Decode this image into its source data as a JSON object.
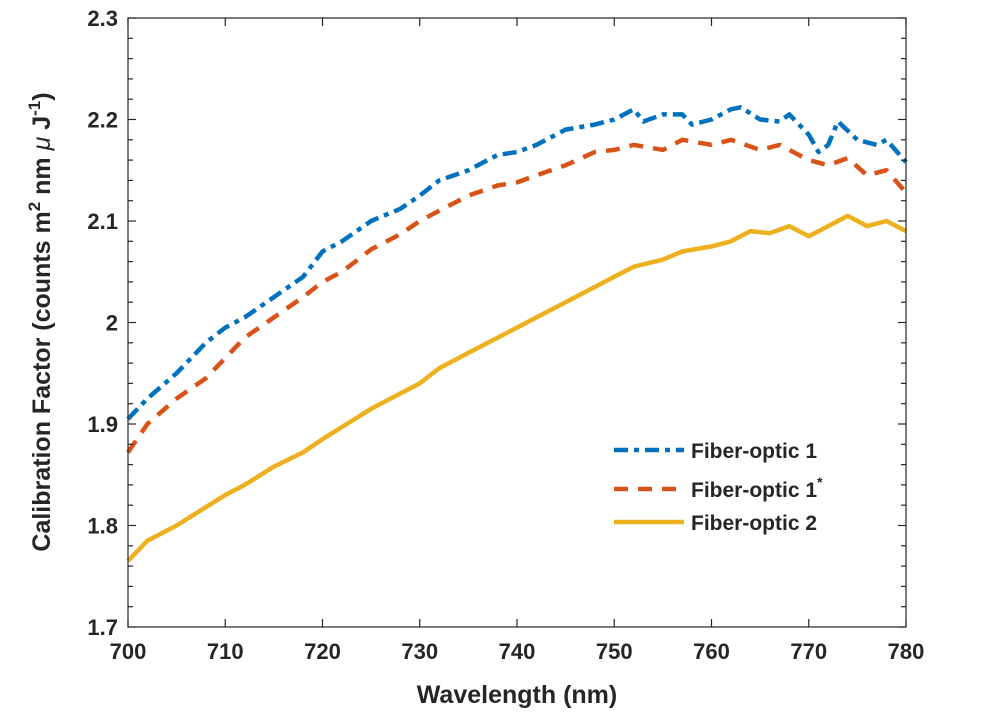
{
  "chart_data": {
    "type": "line",
    "title": "",
    "xlabel": "Wavelength (nm)",
    "ylabel": "Calibration Factor (counts m",
    "ylabel_parts": {
      "pre": "Calibration Factor (counts m",
      "sup1": "2",
      "mid": " nm ",
      "mu": "μ",
      "j": " J",
      "sup2": "-1",
      "post": ")"
    },
    "xlim": [
      700,
      780
    ],
    "ylim": [
      1.7,
      2.3
    ],
    "xticks": [
      "700",
      "710",
      "720",
      "730",
      "740",
      "750",
      "760",
      "770",
      "780"
    ],
    "yticks": [
      "1.7",
      "1.8",
      "1.9",
      "2",
      "2.1",
      "2.2",
      "2.3"
    ],
    "grid": false,
    "legend_position": "lower-right",
    "series": [
      {
        "name": "Fiber-optic 1",
        "name_sup": "",
        "color": "#0072BD",
        "style": "dash-dot",
        "x": [
          700,
          702,
          705,
          708,
          710,
          712,
          715,
          718,
          720,
          722,
          725,
          728,
          730,
          732,
          735,
          738,
          740,
          742,
          745,
          748,
          750,
          752,
          753,
          755,
          757,
          758,
          760,
          762,
          763,
          765,
          767,
          768,
          770,
          771,
          772,
          773,
          775,
          777,
          778,
          780
        ],
        "y": [
          1.905,
          1.925,
          1.95,
          1.98,
          1.995,
          2.005,
          2.025,
          2.045,
          2.07,
          2.08,
          2.1,
          2.112,
          2.125,
          2.14,
          2.15,
          2.165,
          2.168,
          2.175,
          2.19,
          2.195,
          2.2,
          2.21,
          2.198,
          2.205,
          2.205,
          2.195,
          2.2,
          2.21,
          2.212,
          2.2,
          2.198,
          2.205,
          2.185,
          2.168,
          2.175,
          2.198,
          2.18,
          2.175,
          2.18,
          2.158
        ]
      },
      {
        "name": "Fiber-optic 1",
        "name_sup": "*",
        "color": "#D95319",
        "style": "dashed",
        "x": [
          700,
          702,
          705,
          708,
          710,
          712,
          715,
          718,
          720,
          722,
          725,
          728,
          730,
          732,
          735,
          738,
          740,
          742,
          745,
          748,
          750,
          752,
          755,
          757,
          760,
          762,
          765,
          767,
          770,
          772,
          774,
          776,
          778,
          780
        ],
        "y": [
          1.872,
          1.9,
          1.925,
          1.945,
          1.965,
          1.985,
          2.005,
          2.025,
          2.04,
          2.05,
          2.072,
          2.087,
          2.1,
          2.11,
          2.125,
          2.135,
          2.138,
          2.145,
          2.155,
          2.168,
          2.17,
          2.175,
          2.17,
          2.18,
          2.175,
          2.18,
          2.17,
          2.175,
          2.16,
          2.155,
          2.162,
          2.145,
          2.15,
          2.128
        ]
      },
      {
        "name": "Fiber-optic 2",
        "name_sup": "",
        "color": "#EDB120",
        "style": "solid",
        "x": [
          700,
          702,
          705,
          708,
          710,
          712,
          715,
          718,
          720,
          722,
          725,
          728,
          730,
          732,
          735,
          738,
          740,
          742,
          745,
          748,
          750,
          752,
          755,
          757,
          760,
          762,
          764,
          766,
          768,
          770,
          772,
          774,
          776,
          778,
          780
        ],
        "y": [
          1.765,
          1.785,
          1.8,
          1.818,
          1.83,
          1.84,
          1.858,
          1.872,
          1.885,
          1.897,
          1.915,
          1.93,
          1.94,
          1.955,
          1.97,
          1.985,
          1.995,
          2.005,
          2.02,
          2.035,
          2.045,
          2.055,
          2.062,
          2.07,
          2.075,
          2.08,
          2.09,
          2.088,
          2.095,
          2.085,
          2.095,
          2.105,
          2.095,
          2.1,
          2.09
        ]
      }
    ]
  }
}
